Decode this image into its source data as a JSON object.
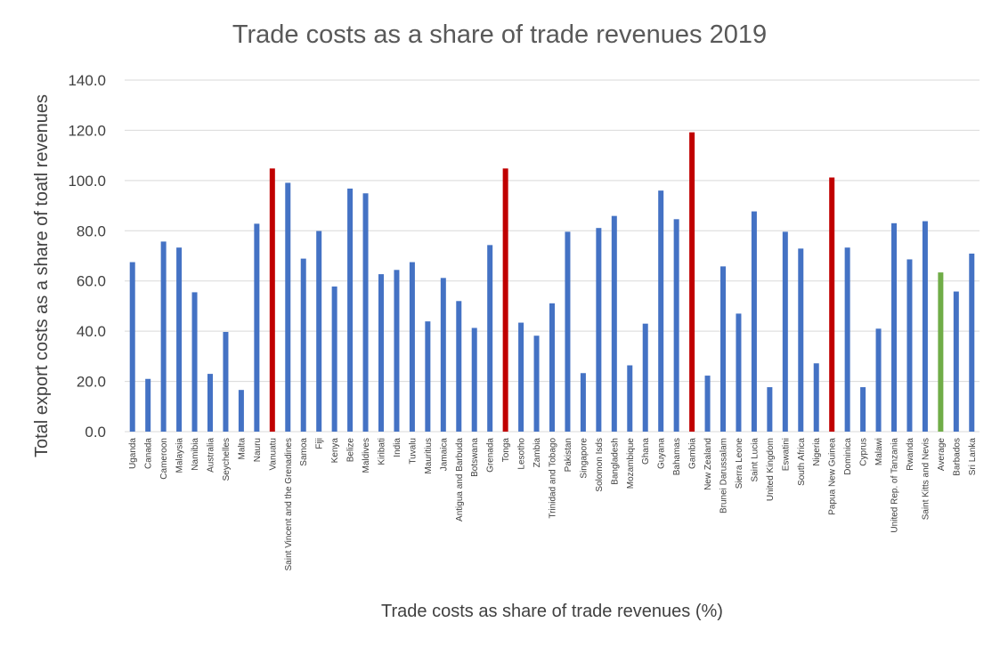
{
  "chart_data": {
    "type": "bar",
    "title": "Trade costs as a share of trade revenues 2019",
    "xlabel": "Trade costs as share of trade revenues (%)",
    "ylabel": "Total export costs as a share of toatl revenues",
    "ylim": [
      0,
      140
    ],
    "yticks": [
      0,
      20,
      40,
      60,
      80,
      100,
      120,
      140
    ],
    "ytick_labels": [
      "0.0",
      "20.0",
      "40.0",
      "60.0",
      "80.0",
      "100.0",
      "120.0",
      "140.0"
    ],
    "grid": true,
    "legend": "none",
    "colors": {
      "default": "#4472c4",
      "highlight": "#c00000",
      "average": "#70ad47",
      "grid": "#d9d9d9"
    },
    "categories": [
      "Uganda",
      "Canada",
      "Cameroon",
      "Malaysia",
      "Namibia",
      "Australia",
      "Seychelles",
      "Malta",
      "Nauru",
      "Vanuatu",
      "Saint Vincent and the Grenadines",
      "Samoa",
      "Fiji",
      "Kenya",
      "Belize",
      "Maldives",
      "Kiribati",
      "India",
      "Tuvalu",
      "Mauritius",
      "Jamaica",
      "Antigua and Barbuda",
      "Botswana",
      "Grenada",
      "Tonga",
      "Lesotho",
      "Zambia",
      "Trinidad and Tobago",
      "Pakistan",
      "Singapore",
      "Solomon Isds",
      "Bangladesh",
      "Mozambique",
      "Ghana",
      "Guyana",
      "Bahamas",
      "Gambia",
      "New Zealand",
      "Brunei Darussalam",
      "Sierra Leone",
      "Saint Lucia",
      "United Kingdom",
      "Eswatini",
      "South Africa",
      "Nigeria",
      "Papua New Guinea",
      "Dominica",
      "Cyprus",
      "Malawi",
      "United Rep. of Tanzania",
      "Rwanda",
      "Saint Kitts and Nevis",
      "Average",
      "Barbados",
      "Sri Lanka"
    ],
    "values": [
      67.5,
      21.0,
      75.7,
      73.3,
      55.5,
      23.0,
      39.7,
      16.6,
      82.8,
      104.8,
      99.1,
      68.9,
      79.9,
      57.8,
      96.8,
      94.9,
      62.7,
      64.4,
      67.5,
      43.9,
      61.2,
      52.0,
      41.3,
      74.3,
      104.8,
      43.4,
      38.2,
      51.1,
      79.6,
      23.3,
      81.1,
      85.9,
      26.4,
      43.0,
      96.0,
      84.6,
      119.2,
      22.3,
      65.8,
      47.0,
      87.7,
      17.7,
      79.6,
      72.9,
      27.2,
      101.2,
      73.3,
      17.7,
      41.0,
      83.0,
      68.6,
      83.8,
      63.4,
      55.8,
      70.9
    ],
    "bar_colors": [
      "default",
      "default",
      "default",
      "default",
      "default",
      "default",
      "default",
      "default",
      "default",
      "highlight",
      "default",
      "default",
      "default",
      "default",
      "default",
      "default",
      "default",
      "default",
      "default",
      "default",
      "default",
      "default",
      "default",
      "default",
      "highlight",
      "default",
      "default",
      "default",
      "default",
      "default",
      "default",
      "default",
      "default",
      "default",
      "default",
      "default",
      "highlight",
      "default",
      "default",
      "default",
      "default",
      "default",
      "default",
      "default",
      "default",
      "highlight",
      "default",
      "default",
      "default",
      "default",
      "default",
      "default",
      "average",
      "default",
      "default"
    ]
  }
}
